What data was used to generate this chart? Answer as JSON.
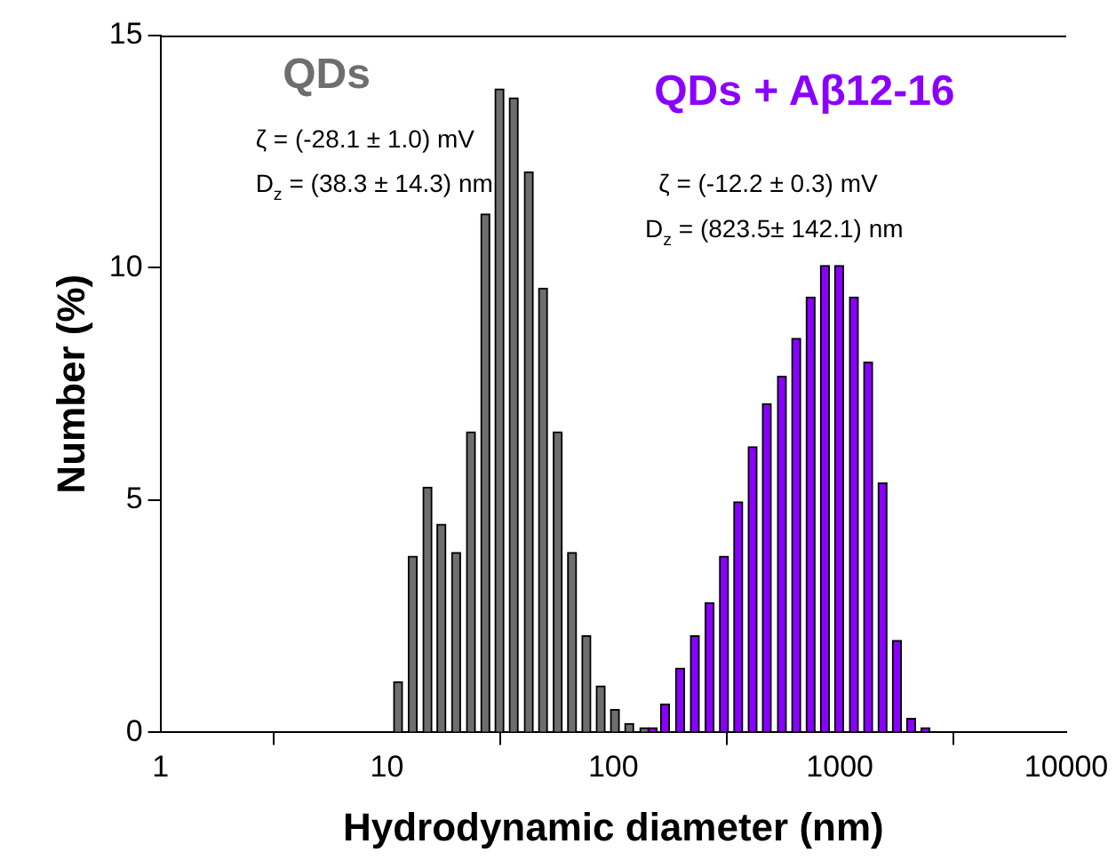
{
  "chart_data": {
    "type": "bar",
    "xlabel": "Hydrodynamic diameter (nm)",
    "ylabel": "Number (%)",
    "log": "x",
    "xlim": [
      1,
      10000
    ],
    "xticks": [
      1,
      10,
      100,
      1000,
      10000
    ],
    "ylim": [
      0,
      15
    ],
    "yticks": [
      0,
      5,
      10,
      15
    ],
    "series": [
      {
        "name": "QDs",
        "color": "#6e6e6e",
        "x": [
          11.2,
          13.0,
          15.1,
          17.4,
          20.2,
          23.5,
          27.2,
          31.4,
          36.3,
          42.3,
          48.9,
          56.8,
          65.7,
          76.0,
          87.9,
          101.6,
          117.5,
          137
        ],
        "values": [
          1.09,
          3.79,
          5.28,
          4.48,
          3.87,
          6.47,
          11.16,
          13.85,
          13.66,
          12.06,
          9.56,
          6.47,
          3.87,
          2.08,
          1.0,
          0.49,
          0.19,
          0.1
        ]
      },
      {
        "name": "QDs + Aβ12-16",
        "color": "#8a00ff",
        "x": [
          149,
          169,
          197,
          229,
          266,
          308,
          356,
          412,
          476,
          555,
          642,
          743,
          859,
          993,
          1154,
          1334,
          1544,
          1786,
          2065,
          2388
        ],
        "values": [
          0.1,
          0.61,
          1.38,
          2.08,
          2.79,
          3.79,
          4.96,
          6.15,
          7.07,
          7.67,
          8.48,
          9.37,
          10.05,
          10.05,
          9.37,
          7.97,
          5.37,
          1.98,
          0.3,
          0.1
        ]
      }
    ],
    "annotations": [
      "ζ = (-28.1 ± 1.0) mV",
      "D$_{z}$ = (38.3 ± 14.3) nm",
      "ζ = (-12.2 ± 0.3) mV",
      "D$_{z}$ = (823.5± 142.1) nm"
    ]
  }
}
